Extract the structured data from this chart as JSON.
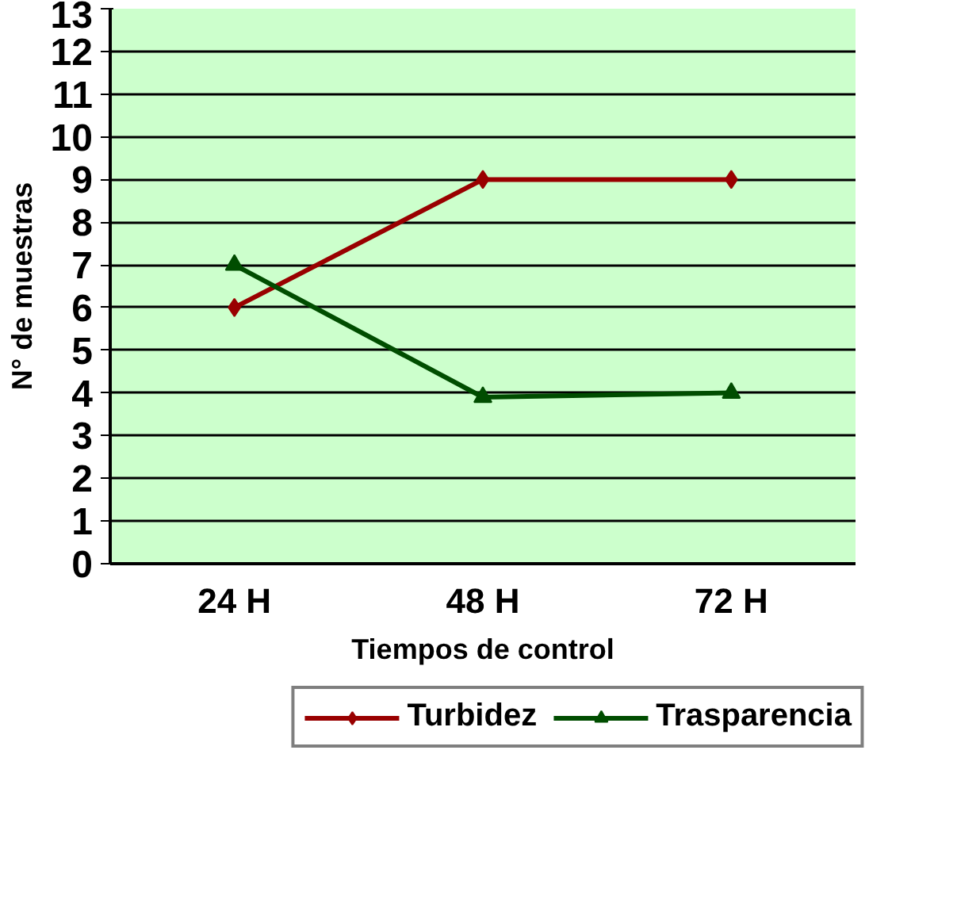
{
  "chart_data": {
    "type": "line",
    "xlabel": "Tiempos de control",
    "ylabel": "N° de muestras",
    "categories": [
      "24 H",
      "48 H",
      "72 H"
    ],
    "series": [
      {
        "name": "Turbidez",
        "color": "#990000",
        "values": [
          6,
          9,
          9
        ],
        "marker": "diamond"
      },
      {
        "name": "Trasparencia",
        "color": "#004d00",
        "values": [
          7,
          3.9,
          4
        ],
        "marker": "triangle"
      }
    ],
    "ylim": [
      0,
      13
    ],
    "yticks": [
      0,
      1,
      2,
      3,
      4,
      5,
      6,
      7,
      8,
      9,
      10,
      11,
      12,
      13
    ],
    "grid": "y",
    "legend": "bottom"
  }
}
